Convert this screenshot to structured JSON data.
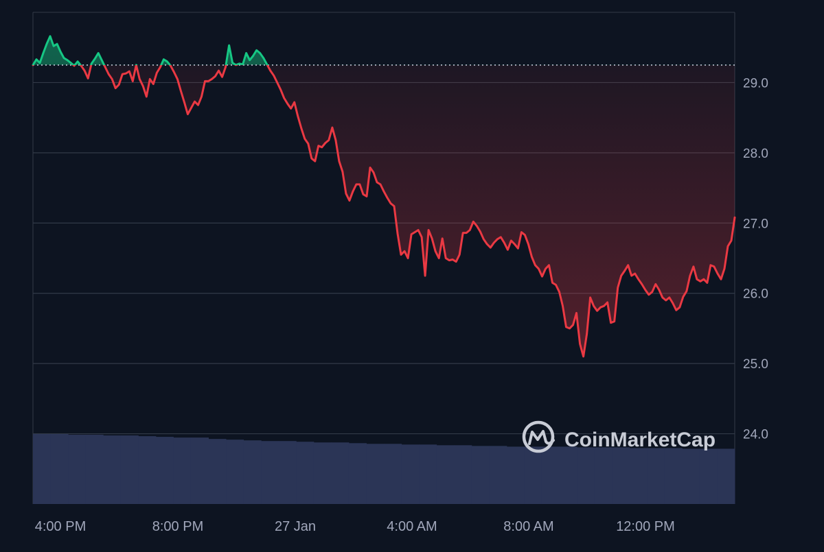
{
  "chart_data": {
    "type": "line",
    "title": "",
    "xlabel": "",
    "ylabel": "",
    "x_ticks": [
      "4:00 PM",
      "8:00 PM",
      "27 Jan",
      "4:00 AM",
      "8:00 AM",
      "12:00 PM"
    ],
    "y_ticks": [
      "29.0",
      "28.0",
      "27.0",
      "26.0",
      "25.0",
      "24.0"
    ],
    "ylim": [
      23.0,
      30.0
    ],
    "baseline_value": 29.25,
    "grid": true,
    "axis_position": "right",
    "series": [
      {
        "role": "price",
        "values": [
          29.25,
          29.33,
          29.28,
          29.42,
          29.55,
          29.66,
          29.52,
          29.55,
          29.44,
          29.35,
          29.32,
          29.28,
          29.24,
          29.3,
          29.24,
          29.17,
          29.06,
          29.27,
          29.34,
          29.42,
          29.32,
          29.22,
          29.12,
          29.05,
          28.92,
          28.97,
          29.12,
          29.13,
          29.16,
          29.02,
          29.25,
          29.05,
          28.95,
          28.8,
          29.05,
          28.98,
          29.14,
          29.22,
          29.33,
          29.3,
          29.24,
          29.15,
          29.05,
          28.88,
          28.72,
          28.55,
          28.64,
          28.73,
          28.68,
          28.8,
          29.02,
          29.02,
          29.05,
          29.09,
          29.17,
          29.08,
          29.22,
          29.53,
          29.28,
          29.25,
          29.27,
          29.26,
          29.42,
          29.32,
          29.38,
          29.46,
          29.42,
          29.35,
          29.26,
          29.17,
          29.1,
          29.0,
          28.9,
          28.78,
          28.7,
          28.63,
          28.72,
          28.52,
          28.35,
          28.2,
          28.13,
          27.92,
          27.88,
          28.1,
          28.08,
          28.14,
          28.18,
          28.36,
          28.18,
          27.88,
          27.73,
          27.42,
          27.32,
          27.45,
          27.55,
          27.55,
          27.41,
          27.38,
          27.79,
          27.72,
          27.58,
          27.55,
          27.45,
          27.36,
          27.28,
          27.24,
          26.85,
          26.55,
          26.6,
          26.5,
          26.84,
          26.87,
          26.9,
          26.8,
          26.25,
          26.9,
          26.78,
          26.6,
          26.5,
          26.78,
          26.5,
          26.47,
          26.48,
          26.45,
          26.55,
          26.86,
          26.86,
          26.9,
          27.02,
          26.96,
          26.88,
          26.77,
          26.7,
          26.65,
          26.72,
          26.77,
          26.8,
          26.72,
          26.62,
          26.75,
          26.7,
          26.64,
          26.87,
          26.83,
          26.7,
          26.52,
          26.4,
          26.35,
          26.24,
          26.35,
          26.4,
          26.15,
          26.12,
          26.02,
          25.82,
          25.52,
          25.5,
          25.55,
          25.72,
          25.28,
          25.1,
          25.42,
          25.94,
          25.82,
          25.75,
          25.8,
          25.82,
          25.87,
          25.58,
          25.6,
          26.08,
          26.25,
          26.32,
          26.4,
          26.25,
          26.28,
          26.2,
          26.13,
          26.05,
          25.98,
          26.02,
          26.13,
          26.05,
          25.94,
          25.9,
          25.94,
          25.86,
          25.76,
          25.8,
          25.95,
          26.03,
          26.25,
          26.38,
          26.2,
          26.17,
          26.2,
          26.15,
          26.4,
          26.38,
          26.28,
          26.2,
          26.35,
          26.67,
          26.75,
          27.08
        ]
      },
      {
        "role": "volume",
        "values": [
          1.0,
          1.0,
          0.99,
          0.99,
          0.98,
          0.98,
          0.97,
          0.96,
          0.95,
          0.95,
          0.93,
          0.92,
          0.91,
          0.9,
          0.9,
          0.89,
          0.88,
          0.88,
          0.87,
          0.86,
          0.86,
          0.85,
          0.85,
          0.84,
          0.84,
          0.83,
          0.83,
          0.82,
          0.82,
          0.82,
          0.82,
          0.81,
          0.81,
          0.81,
          0.8,
          0.8,
          0.8,
          0.79,
          0.79,
          0.79
        ]
      }
    ]
  },
  "watermark": {
    "text": "CoinMarketCap",
    "icon": "coinmarketcap-logo-icon"
  },
  "colors": {
    "background": "#0d1421",
    "grid": "#323a48",
    "axis_text": "#a1a7bb",
    "up": "#16c784",
    "down": "#ea3943",
    "volume": "#2b3556",
    "baseline": "#cfd6e4",
    "watermark": "#c8ccd6"
  }
}
